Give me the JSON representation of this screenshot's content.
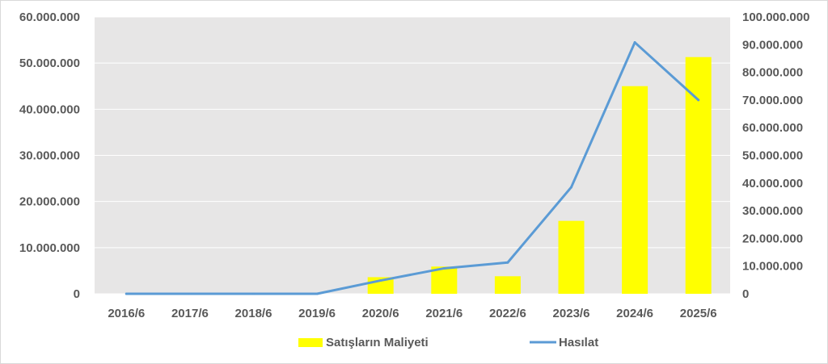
{
  "chart_data": {
    "type": "bar+line",
    "categories": [
      "2016/6",
      "2017/6",
      "2018/6",
      "2019/6",
      "2020/6",
      "2021/6",
      "2022/6",
      "2023/6",
      "2024/6",
      "2025/6"
    ],
    "series": [
      {
        "name": "Satışların Maliyeti",
        "type": "bar",
        "axis": "left",
        "color": "#ffff00",
        "values": [
          0,
          0,
          0,
          0,
          3600000,
          5900000,
          3800000,
          15800000,
          45000000,
          51300000
        ]
      },
      {
        "name": "Hasılat",
        "type": "line",
        "axis": "right",
        "color": "#5b9bd5",
        "values": [
          0,
          0,
          0,
          0,
          4800000,
          9200000,
          11300000,
          38500000,
          90800000,
          70000000
        ]
      }
    ],
    "y_left": {
      "min": 0,
      "max": 60000000,
      "ticks": [
        "0",
        "10.000.000",
        "20.000.000",
        "30.000.000",
        "40.000.000",
        "50.000.000",
        "60.000.000"
      ]
    },
    "y_right": {
      "min": 0,
      "max": 100000000,
      "ticks": [
        "0",
        "10.000.000",
        "20.000.000",
        "30.000.000",
        "40.000.000",
        "50.000.000",
        "60.000.000",
        "70.000.000",
        "80.000.000",
        "90.000.000",
        "100.000.000"
      ]
    },
    "grid": true,
    "plot_background": "#e7e6e6",
    "legend_position": "bottom"
  }
}
